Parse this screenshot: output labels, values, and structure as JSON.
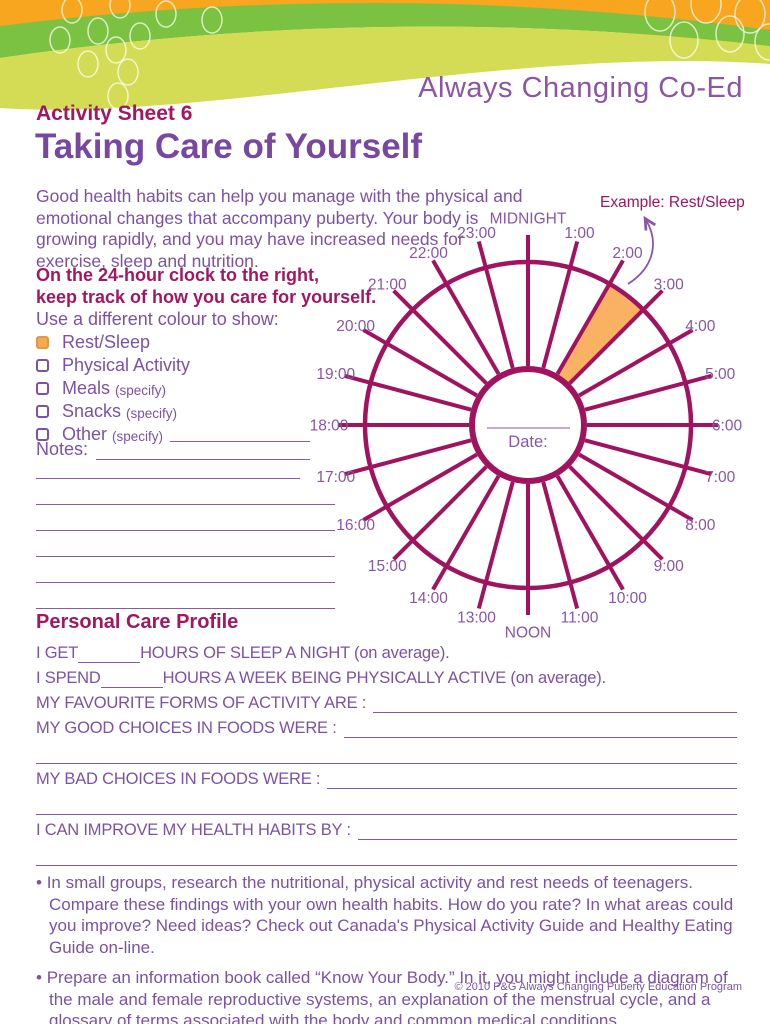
{
  "brand": {
    "title": "Always Changing Co-Ed"
  },
  "header": {
    "sheet_label": "Activity Sheet 6",
    "page_title": "Taking Care of Yourself"
  },
  "intro": {
    "lines": [
      "Good health habits can help you manage with the physical and",
      "emotional changes that accompany puberty. Your body is",
      "growing rapidly, and you may have increased needs for",
      "exercise, sleep and nutrition."
    ]
  },
  "instruction": {
    "lines": [
      "On the 24-hour clock to the right,",
      "keep track of how you care for yourself."
    ],
    "legend_intro": "Use a different colour to show:"
  },
  "checklist": {
    "items": [
      {
        "label": "Rest/Sleep",
        "note": "",
        "checked": true
      },
      {
        "label": "Physical Activity",
        "note": "",
        "checked": false
      },
      {
        "label": "Meals",
        "note": "(specify)",
        "checked": false
      },
      {
        "label": "Snacks",
        "note": "(specify)",
        "checked": false
      },
      {
        "label": "Other",
        "note": "(specify)",
        "checked": false
      }
    ]
  },
  "notes": {
    "label": "Notes:"
  },
  "clock": {
    "example_label": "Example: Rest/Sleep",
    "date_label": "Date:",
    "hours": [
      "MIDNIGHT",
      "1:00",
      "2:00",
      "3:00",
      "4:00",
      "5:00",
      "6:00",
      "7:00",
      "8:00",
      "9:00",
      "10:00",
      "11:00",
      "NOON",
      "13:00",
      "14:00",
      "15:00",
      "16:00",
      "17:00",
      "18:00",
      "19:00",
      "20:00",
      "21:00",
      "22:00",
      "23:00"
    ],
    "highlight": {
      "from_hour": 2,
      "to_hour": 3,
      "meaning": "Rest/Sleep"
    }
  },
  "profile": {
    "heading": "Personal Care Profile",
    "rows": [
      {
        "before": "I GET",
        "after": "HOURS OF SLEEP A NIGHT (on average)."
      },
      {
        "before": "I SPEND",
        "after": "HOURS A WEEK BEING PHYSICALLY ACTIVE (on average)."
      },
      {
        "before": "MY FAVOURITE FORMS OF ACTIVITY ARE :"
      },
      {
        "before": "MY GOOD CHOICES IN FOODS WERE :"
      },
      {
        "blank": "full"
      },
      {
        "before": "MY BAD CHOICES IN FOODS WERE :"
      },
      {
        "blank": "full"
      },
      {
        "before": "I CAN IMPROVE MY HEALTH HABITS BY :"
      },
      {
        "blank": "full"
      }
    ]
  },
  "activities": {
    "bullets": [
      "In small groups, research the nutritional, physical activity and rest needs of teenagers. Compare these findings with your own health habits. How do you rate? In what areas could you improve? Need ideas? Check out Canada's Physical Activity Guide and Healthy Eating Guide on-line.",
      "Prepare an information book called “Know Your Body.” In it, you might include a diagram of the male and female reproductive systems, an explanation of the menstrual cycle, and a glossary of terms associated with the body and common medical conditions."
    ]
  },
  "footer": {
    "copyright": "© 2010 P&G Always Changing Puberty Education Program"
  },
  "colors": {
    "accent_magenta": "#A1135E",
    "purple_text": "#7C52A5",
    "label_purple": "#8A55A8",
    "highlight_orange": "#FBB163",
    "header_orange": "#F8A51F",
    "header_green": "#7CC242",
    "header_light_green": "#D4DC55"
  }
}
